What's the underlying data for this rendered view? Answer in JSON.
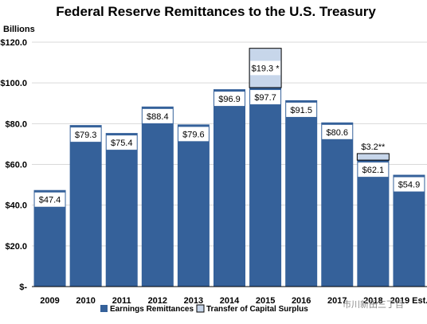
{
  "chart_data": {
    "type": "bar",
    "title": "Federal Reserve Remittances to the U.S. Treasury",
    "units_label": "Billions",
    "categories": [
      "2009",
      "2010",
      "2011",
      "2012",
      "2013",
      "2014",
      "2015",
      "2016",
      "2017",
      "2018",
      "2019 Est."
    ],
    "ylim": [
      0,
      120
    ],
    "yticks": [
      {
        "value": 0,
        "label": "$-"
      },
      {
        "value": 20,
        "label": "$20.0"
      },
      {
        "value": 40,
        "label": "$40.0"
      },
      {
        "value": 60,
        "label": "$60.0"
      },
      {
        "value": 80,
        "label": "$80.0"
      },
      {
        "value": 100,
        "label": "$100.0"
      },
      {
        "value": 120,
        "label": "$120.0"
      }
    ],
    "series": [
      {
        "name": "Earnings Remittances",
        "color": "#35619a",
        "values": [
          47.4,
          79.3,
          75.4,
          88.4,
          79.6,
          96.9,
          97.7,
          91.5,
          80.6,
          62.1,
          54.9
        ],
        "labels": [
          "$47.4",
          "$79.3",
          "$75.4",
          "$88.4",
          "$79.6",
          "$96.9",
          "$97.7",
          "$91.5",
          "$80.6",
          "$62.1",
          "$54.9"
        ]
      },
      {
        "name": "Transfer of Capital Surplus",
        "color": "#c7d6ea",
        "values": [
          null,
          null,
          null,
          null,
          null,
          null,
          19.3,
          null,
          null,
          3.2,
          null
        ],
        "labels": [
          null,
          null,
          null,
          null,
          null,
          null,
          "$19.3 *",
          null,
          null,
          "$3.2**",
          null
        ]
      }
    ],
    "grid": "horizontal",
    "legend_position": "bottom"
  },
  "watermark": "市川新田三丁目"
}
